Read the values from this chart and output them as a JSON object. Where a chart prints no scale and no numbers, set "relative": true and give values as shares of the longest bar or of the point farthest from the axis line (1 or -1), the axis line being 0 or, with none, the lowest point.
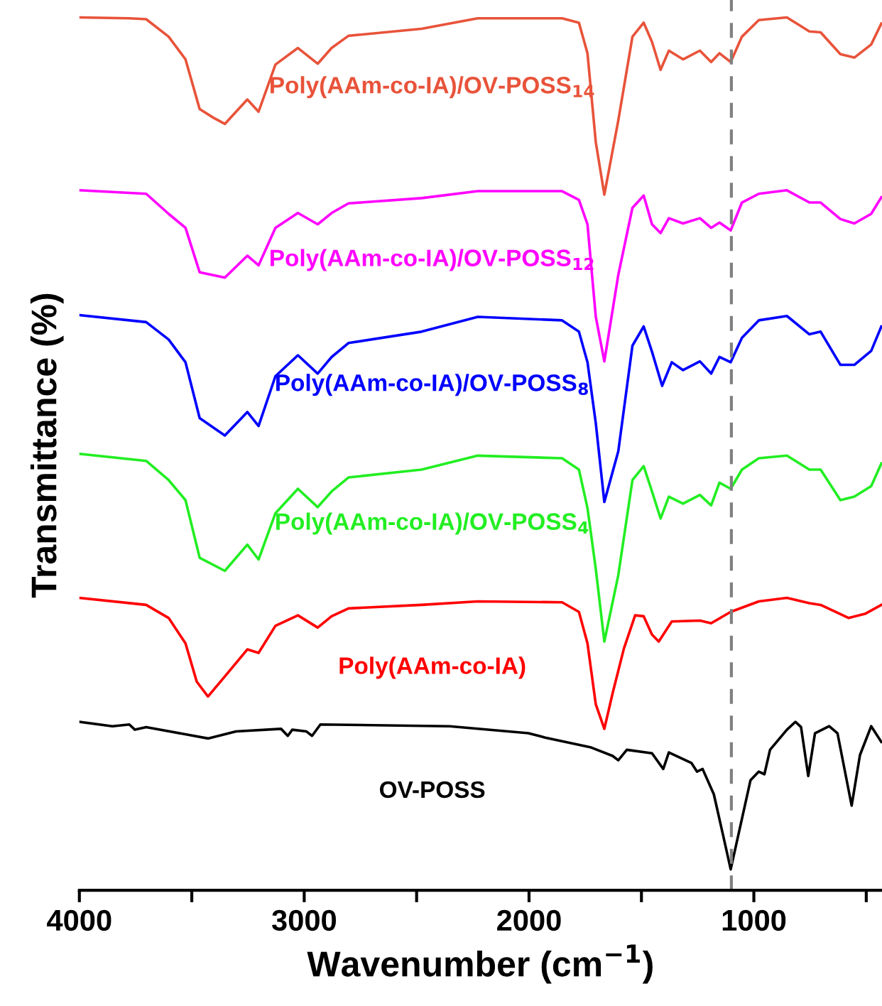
{
  "chart_data": {
    "type": "line",
    "relative": true,
    "xlabel": "Wavenumber (cm$^{−1}$)",
    "ylabel": "Transmittance (%)",
    "xlim": [
      4000,
      430
    ],
    "xticks": [
      4000,
      {
        "value": 3500,
        "label": null
      },
      3000,
      {
        "value": 2500,
        "label": null
      },
      2000,
      {
        "value": 1500,
        "label": null
      },
      1000,
      {
        "value": 500,
        "label": null
      }
    ],
    "tick_labels": "x",
    "grid": false,
    "legend": false,
    "line_style": "solid",
    "marker": "none",
    "ref_lines": [
      {
        "axis": "x",
        "value": 1100,
        "color": "#808080",
        "line_style": "dashed"
      }
    ],
    "series": [
      {
        "name": "Poly(AAm-co-IA)/OV-POSS$_{14}$",
        "color": "#e8533a",
        "x": [
          4000,
          3778,
          3703,
          3603,
          3528,
          3465,
          3403,
          3353,
          3253,
          3203,
          3128,
          3028,
          2940,
          2878,
          2803,
          2478,
          2228,
          1853,
          1778,
          1740,
          1703,
          1665,
          1603,
          1540,
          1490,
          1453,
          1415,
          1378,
          1315,
          1240,
          1190,
          1153,
          1103,
          1053,
          978,
          853,
          753,
          703,
          615,
          553,
          478,
          433
        ],
        "values": [
          1.0,
          0.999,
          0.998,
          0.978,
          0.952,
          0.895,
          0.885,
          0.878,
          0.906,
          0.892,
          0.946,
          0.965,
          0.947,
          0.965,
          0.979,
          0.987,
          0.999,
          0.999,
          0.994,
          0.959,
          0.857,
          0.797,
          0.882,
          0.978,
          0.994,
          0.972,
          0.94,
          0.962,
          0.952,
          0.962,
          0.949,
          0.959,
          0.949,
          0.978,
          0.997,
          1.0,
          0.984,
          0.983,
          0.958,
          0.954,
          0.969,
          0.993
        ]
      },
      {
        "name": "Poly(AAm-co-IA)/OV-POSS$_{12}$",
        "color": "#ff00ff",
        "x": [
          4000,
          3703,
          3603,
          3528,
          3465,
          3353,
          3253,
          3203,
          3128,
          3028,
          2940,
          2878,
          2803,
          2478,
          2228,
          1853,
          1778,
          1740,
          1703,
          1665,
          1603,
          1540,
          1490,
          1453,
          1415,
          1378,
          1315,
          1240,
          1190,
          1153,
          1103,
          1053,
          978,
          853,
          753,
          703,
          615,
          553,
          478,
          433
        ],
        "values": [
          0.802,
          0.798,
          0.775,
          0.759,
          0.708,
          0.702,
          0.727,
          0.716,
          0.759,
          0.776,
          0.763,
          0.776,
          0.787,
          0.793,
          0.801,
          0.801,
          0.791,
          0.763,
          0.657,
          0.606,
          0.705,
          0.782,
          0.796,
          0.763,
          0.753,
          0.77,
          0.764,
          0.77,
          0.759,
          0.765,
          0.756,
          0.788,
          0.798,
          0.802,
          0.788,
          0.788,
          0.769,
          0.764,
          0.775,
          0.794
        ]
      },
      {
        "name": "Poly(AAm-co-IA)/OV-POSS$_{8}$",
        "color": "#0000ff",
        "x": [
          4000,
          3703,
          3603,
          3528,
          3465,
          3353,
          3253,
          3203,
          3128,
          3028,
          2940,
          2878,
          2803,
          2478,
          2228,
          1853,
          1778,
          1740,
          1703,
          1665,
          1603,
          1540,
          1490,
          1453,
          1408,
          1365,
          1315,
          1240,
          1190,
          1153,
          1103,
          1053,
          978,
          853,
          753,
          703,
          615,
          553,
          478,
          433
        ],
        "values": [
          0.659,
          0.651,
          0.631,
          0.605,
          0.541,
          0.521,
          0.548,
          0.532,
          0.589,
          0.613,
          0.592,
          0.611,
          0.627,
          0.64,
          0.657,
          0.653,
          0.64,
          0.605,
          0.535,
          0.445,
          0.503,
          0.624,
          0.646,
          0.617,
          0.578,
          0.605,
          0.596,
          0.606,
          0.592,
          0.611,
          0.605,
          0.633,
          0.653,
          0.658,
          0.637,
          0.64,
          0.602,
          0.602,
          0.618,
          0.646
        ]
      },
      {
        "name": "Poly(AAm-co-IA)/OV-POSS$_{4}$",
        "color": "#22ee22",
        "x": [
          4000,
          3703,
          3603,
          3528,
          3465,
          3353,
          3253,
          3203,
          3128,
          3028,
          2940,
          2878,
          2803,
          2478,
          2228,
          1853,
          1778,
          1740,
          1703,
          1665,
          1603,
          1540,
          1490,
          1453,
          1415,
          1378,
          1315,
          1240,
          1190,
          1153,
          1103,
          1053,
          978,
          853,
          753,
          703,
          615,
          553,
          478,
          433
        ],
        "values": [
          0.5,
          0.492,
          0.47,
          0.447,
          0.381,
          0.366,
          0.396,
          0.379,
          0.432,
          0.46,
          0.439,
          0.457,
          0.473,
          0.482,
          0.498,
          0.495,
          0.482,
          0.438,
          0.368,
          0.285,
          0.361,
          0.47,
          0.486,
          0.457,
          0.426,
          0.451,
          0.443,
          0.453,
          0.441,
          0.467,
          0.46,
          0.482,
          0.495,
          0.498,
          0.482,
          0.482,
          0.447,
          0.451,
          0.463,
          0.489
        ]
      },
      {
        "name": "Poly(AAm-co-IA)",
        "color": "#ff0000",
        "x": [
          4000,
          3703,
          3603,
          3528,
          3478,
          3428,
          3353,
          3253,
          3203,
          3128,
          3028,
          2940,
          2878,
          2803,
          2478,
          2228,
          1853,
          1778,
          1740,
          1703,
          1665,
          1628,
          1578,
          1528,
          1490,
          1453,
          1423,
          1365,
          1240,
          1190,
          1103,
          978,
          853,
          753,
          703,
          578,
          503,
          433
        ],
        "values": [
          0.335,
          0.327,
          0.312,
          0.283,
          0.239,
          0.222,
          0.245,
          0.276,
          0.272,
          0.303,
          0.315,
          0.301,
          0.314,
          0.323,
          0.327,
          0.331,
          0.33,
          0.319,
          0.283,
          0.213,
          0.185,
          0.226,
          0.277,
          0.315,
          0.314,
          0.293,
          0.285,
          0.308,
          0.309,
          0.306,
          0.319,
          0.331,
          0.335,
          0.329,
          0.327,
          0.312,
          0.317,
          0.327
        ]
      },
      {
        "name": "OV-POSS",
        "color": "#000000",
        "x": [
          4000,
          3853,
          3778,
          3753,
          3703,
          3428,
          3303,
          3103,
          3073,
          3053,
          2990,
          2965,
          2928,
          2353,
          2003,
          1928,
          1728,
          1628,
          1603,
          1565,
          1453,
          1403,
          1378,
          1278,
          1253,
          1228,
          1178,
          1128,
          1103,
          1078,
          1015,
          978,
          953,
          928,
          853,
          815,
          790,
          758,
          728,
          665,
          628,
          565,
          528,
          478,
          433
        ],
        "values": [
          0.193,
          0.188,
          0.19,
          0.184,
          0.187,
          0.174,
          0.182,
          0.185,
          0.177,
          0.184,
          0.182,
          0.177,
          0.19,
          0.188,
          0.18,
          0.175,
          0.164,
          0.154,
          0.149,
          0.161,
          0.157,
          0.139,
          0.158,
          0.146,
          0.136,
          0.139,
          0.11,
          0.053,
          0.024,
          0.053,
          0.126,
          0.136,
          0.133,
          0.161,
          0.184,
          0.193,
          0.187,
          0.131,
          0.18,
          0.188,
          0.18,
          0.097,
          0.155,
          0.188,
          0.17
        ]
      }
    ]
  }
}
